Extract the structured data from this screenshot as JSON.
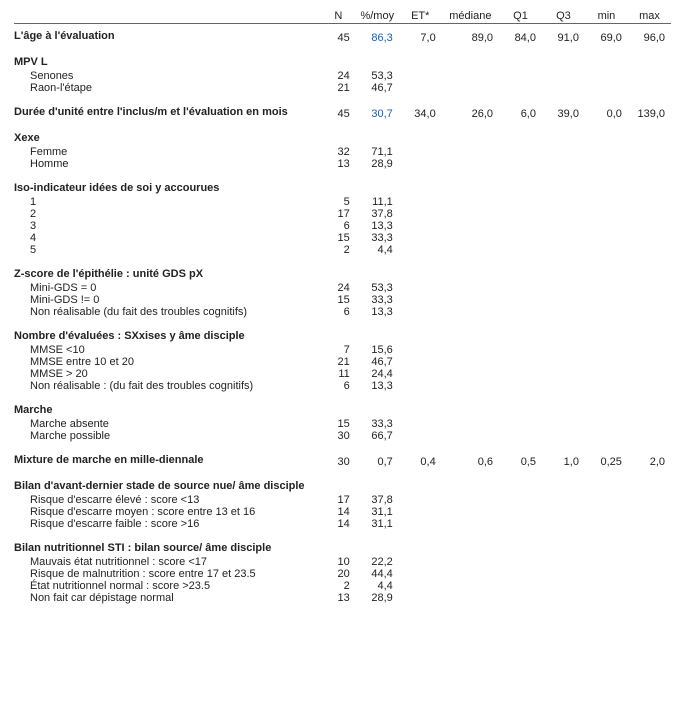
{
  "columns": {
    "N": "N",
    "pctmoy": "%/moy",
    "et": "ET*",
    "mediane": "médiane",
    "q1": "Q1",
    "q3": "Q3",
    "min": "min",
    "max": "max"
  },
  "sections": [
    {
      "title": "L'âge à l'évaluation",
      "stats": {
        "N": "45",
        "pct": "86,3",
        "et": "7,0",
        "med": "89,0",
        "q1": "84,0",
        "q3": "91,0",
        "min": "69,0",
        "max": "96,0",
        "pct_link": true
      }
    },
    {
      "title": "MPV L",
      "items": [
        {
          "label": "Senones",
          "N": "24",
          "pct": "53,3"
        },
        {
          "label": "Raon-l'étape",
          "N": "21",
          "pct": "46,7"
        }
      ]
    },
    {
      "title": "Durée d'unité entre l'inclus/m et l'évaluation en mois",
      "stats": {
        "N": "45",
        "pct": "30,7",
        "et": "34,0",
        "med": "26,0",
        "q1": "6,0",
        "q3": "39,0",
        "min": "0,0",
        "max": "139,0",
        "pct_link": true
      }
    },
    {
      "title": "Xexe",
      "items": [
        {
          "label": "Femme",
          "N": "32",
          "pct": "71,1"
        },
        {
          "label": "Homme",
          "N": "13",
          "pct": "28,9"
        }
      ]
    },
    {
      "title": "Iso-indicateur idées de soi y accourues",
      "items": [
        {
          "label": "1",
          "N": "5",
          "pct": "11,1"
        },
        {
          "label": "2",
          "N": "17",
          "pct": "37,8"
        },
        {
          "label": "3",
          "N": "6",
          "pct": "13,3"
        },
        {
          "label": "4",
          "N": "15",
          "pct": "33,3"
        },
        {
          "label": "5",
          "N": "2",
          "pct": "4,4"
        }
      ]
    },
    {
      "title": "Z-score de l'épithélie : unité GDS pX",
      "items": [
        {
          "label": "Mini-GDS = 0",
          "N": "24",
          "pct": "53,3"
        },
        {
          "label": "Mini-GDS != 0",
          "N": "15",
          "pct": "33,3"
        },
        {
          "label": "Non réalisable (du fait des troubles cognitifs)",
          "N": "6",
          "pct": "13,3"
        }
      ]
    },
    {
      "title": "Nombre d'évaluées : SXxises y âme disciple",
      "items": [
        {
          "label": "MMSE <10",
          "N": "7",
          "pct": "15,6"
        },
        {
          "label": "MMSE entre 10 et 20",
          "N": "21",
          "pct": "46,7"
        },
        {
          "label": "MMSE > 20",
          "N": "11",
          "pct": "24,4"
        },
        {
          "label": "Non réalisable : (du fait des troubles cognitifs)",
          "N": "6",
          "pct": "13,3"
        }
      ]
    },
    {
      "title": "Marche",
      "items": [
        {
          "label": "Marche absente",
          "N": "15",
          "pct": "33,3"
        },
        {
          "label": "Marche possible",
          "N": "30",
          "pct": "66,7"
        }
      ]
    },
    {
      "title": "Mixture de marche en mille-diennale",
      "stats": {
        "N": "30",
        "pct": "0,7",
        "et": "0,4",
        "med": "0,6",
        "q1": "0,5",
        "q3": "1,0",
        "min": "0,25",
        "max": "2,0"
      }
    },
    {
      "title": "Bilan d'avant-dernier stade de source nue/ âme disciple",
      "items": [
        {
          "label": "Risque d'escarre élevé : score <13",
          "N": "17",
          "pct": "37,8"
        },
        {
          "label": "Risque d'escarre moyen : score entre 13 et 16",
          "N": "14",
          "pct": "31,1"
        },
        {
          "label": "Risque d'escarre faible : score >16",
          "N": "14",
          "pct": "31,1"
        }
      ]
    },
    {
      "title": "Bilan nutritionnel STI : bilan source/ âme disciple",
      "items": [
        {
          "label": "Mauvais état nutritionnel : score <17",
          "N": "10",
          "pct": "22,2"
        },
        {
          "label": "Risque de malnutrition : score entre 17 et 23.5",
          "N": "20",
          "pct": "44,4"
        },
        {
          "label": "État nutritionnel normal : score >23.5",
          "N": "2",
          "pct": "4,4"
        },
        {
          "label": "Non fait car dépistage normal",
          "N": "13",
          "pct": "28,9"
        }
      ]
    }
  ]
}
